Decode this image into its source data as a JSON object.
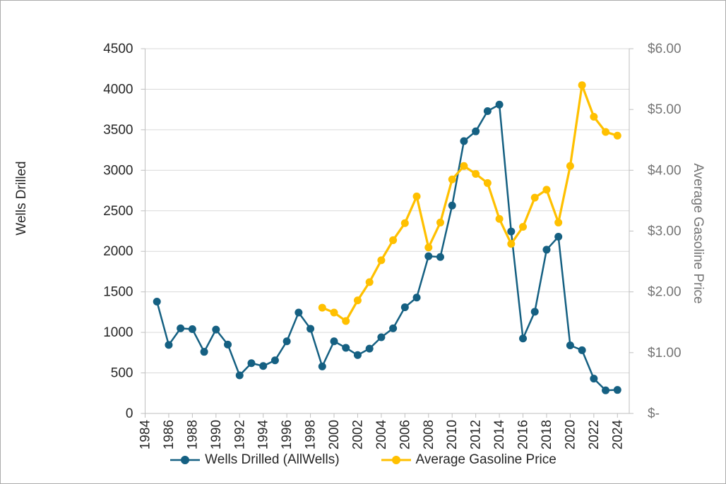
{
  "window": {
    "background": "#ffffff",
    "border_color": "#ababab"
  },
  "chart_data": {
    "type": "line",
    "title": "",
    "ylabel_left": "Wells Drilled",
    "ylabel_right": "Average Gasoline Price",
    "grid": true,
    "legend_position": "bottom",
    "x_axis": {
      "tick_labels": [
        "1984",
        "1986",
        "1988",
        "1990",
        "1992",
        "1994",
        "1996",
        "1998",
        "2000",
        "2002",
        "2004",
        "2006",
        "2008",
        "2010",
        "2012",
        "2014",
        "2016",
        "2018",
        "2020",
        "2022",
        "2024"
      ],
      "range": [
        1984,
        2025
      ],
      "label_rotation_deg": -90
    },
    "y_axis_left": {
      "min": 0,
      "max": 4500,
      "step": 500,
      "tick_labels": [
        "0",
        "500",
        "1000",
        "1500",
        "2000",
        "2500",
        "3000",
        "3500",
        "4000",
        "4500"
      ]
    },
    "y_axis_right": {
      "min": 0,
      "max": 6,
      "step": 1,
      "tick_labels": [
        "$-",
        "$1.00",
        "$2.00",
        "$3.00",
        "$4.00",
        "$5.00",
        "$6.00"
      ]
    },
    "series": [
      {
        "name": "Wells Drilled (AllWells)",
        "axis": "left",
        "color": "#156082",
        "x": [
          1985,
          1986,
          1987,
          1988,
          1989,
          1990,
          1991,
          1992,
          1993,
          1994,
          1995,
          1996,
          1997,
          1998,
          1999,
          2000,
          2001,
          2002,
          2003,
          2004,
          2005,
          2006,
          2007,
          2008,
          2009,
          2010,
          2011,
          2012,
          2013,
          2014,
          2015,
          2016,
          2017,
          2018,
          2019,
          2020,
          2021,
          2022,
          2023,
          2024
        ],
        "values": [
          1380,
          845,
          1050,
          1040,
          760,
          1035,
          850,
          470,
          620,
          585,
          655,
          890,
          1245,
          1045,
          580,
          890,
          810,
          720,
          800,
          940,
          1050,
          1310,
          1430,
          1940,
          1930,
          2565,
          3360,
          3480,
          3730,
          3810,
          2245,
          925,
          1255,
          2020,
          2180,
          840,
          780,
          430,
          285,
          290
        ]
      },
      {
        "name": "Average Gasoline Price",
        "axis": "right",
        "color": "#FFC000",
        "x": [
          1999,
          2000,
          2001,
          2002,
          2003,
          2004,
          2005,
          2006,
          2007,
          2008,
          2009,
          2010,
          2011,
          2012,
          2013,
          2014,
          2015,
          2016,
          2017,
          2018,
          2019,
          2020,
          2021,
          2022,
          2023,
          2024
        ],
        "values": [
          1.74,
          1.66,
          1.52,
          1.86,
          2.16,
          2.52,
          2.85,
          3.13,
          3.57,
          2.73,
          3.14,
          3.85,
          4.07,
          3.94,
          3.79,
          3.2,
          2.79,
          3.07,
          3.55,
          3.68,
          3.14,
          4.07,
          5.4,
          4.88,
          4.63,
          4.57
        ]
      }
    ],
    "style": {
      "gridline_color": "#d9d9d9",
      "axis_line_color": "#bfbfbf",
      "left_label_color": "#262626",
      "right_label_color": "#757575",
      "x_label_color": "#262626",
      "tick_font_size": 19,
      "marker_radius": 5.5
    }
  }
}
